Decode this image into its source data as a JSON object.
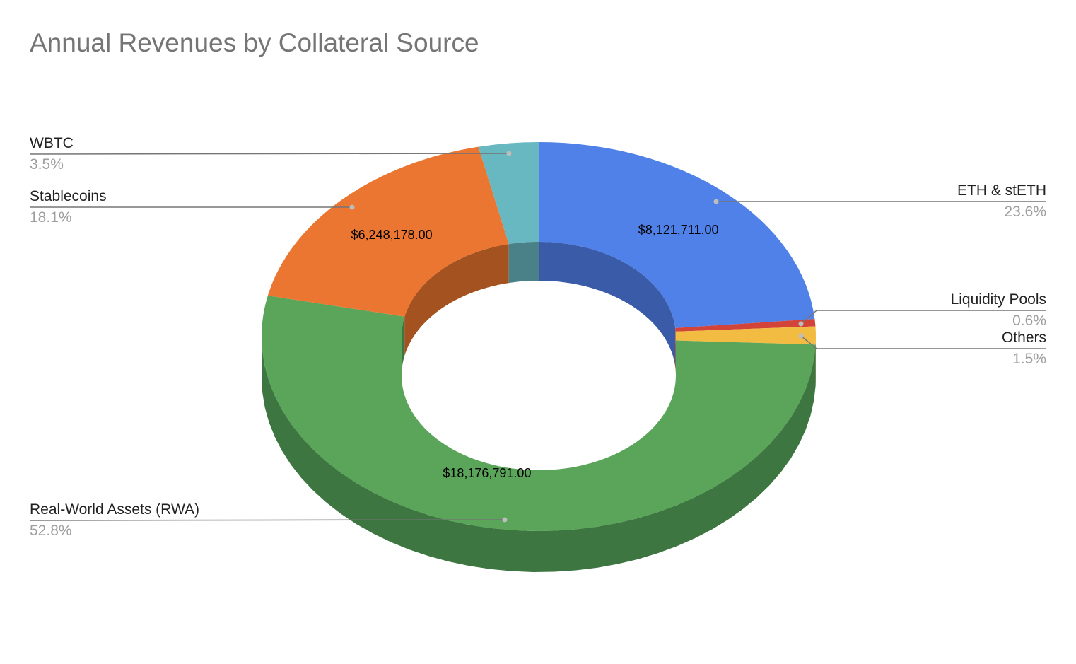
{
  "chart_data": {
    "type": "pie",
    "title": "Annual Revenues by Collateral Source",
    "donut": true,
    "three_d": true,
    "slices": [
      {
        "name": "ETH & stETH",
        "percent_label": "23.6%",
        "value": 8121711.0,
        "value_label": "$8,121,711.00",
        "color": "#5081E8",
        "side_color": "#3A5BA8",
        "show_value": true
      },
      {
        "name": "Liquidity Pools",
        "percent_label": "0.6%",
        "value": 206476.0,
        "value_label": "",
        "color": "#D2433A",
        "side_color": "#96302A",
        "show_value": false
      },
      {
        "name": "Others",
        "percent_label": "1.5%",
        "value": 516189.0,
        "value_label": "",
        "color": "#F2BC42",
        "side_color": "#B08A30",
        "show_value": false
      },
      {
        "name": "Real-World Assets (RWA)",
        "percent_label": "52.8%",
        "value": 18176791.0,
        "value_label": "$18,176,791.00",
        "color": "#5BA55A",
        "side_color": "#3D7641",
        "show_value": true
      },
      {
        "name": "Stablecoins",
        "percent_label": "18.1%",
        "value": 6248178.0,
        "value_label": "$6,248,178.00",
        "color": "#EB7631",
        "side_color": "#A4521F",
        "show_value": true
      },
      {
        "name": "WBTC",
        "percent_label": "3.5%",
        "value": 1204441.0,
        "value_label": "",
        "color": "#68B8C1",
        "side_color": "#4A8189",
        "show_value": false
      }
    ],
    "legend": "none (labels with leader lines)"
  }
}
